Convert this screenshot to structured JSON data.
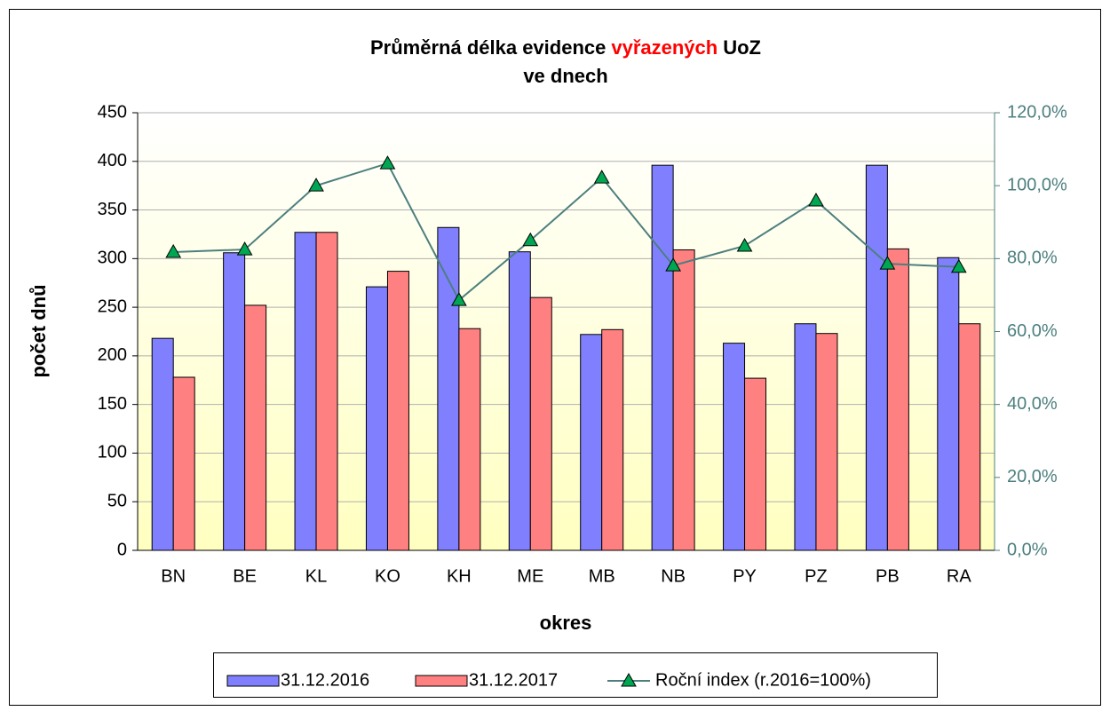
{
  "chart_data": {
    "type": "bar_line",
    "title": [
      {
        "text": "Průměrná délka evidence",
        "color": "#000000"
      },
      {
        "text": "vyřazených",
        "color": "#ff0000"
      },
      {
        "text": "UoZ",
        "color": "#000000"
      }
    ],
    "subtitle": "ve dnech",
    "x_label": "okres",
    "y_label": "počet dnů",
    "categories": [
      "BN",
      "BE",
      "KL",
      "KO",
      "KH",
      "ME",
      "MB",
      "NB",
      "PY",
      "PZ",
      "PB",
      "RA"
    ],
    "series": [
      {
        "name": "31.12.2016",
        "color": "#8080ff",
        "values": [
          218,
          306,
          327,
          271,
          332,
          307,
          222,
          396,
          213,
          233,
          396,
          301
        ]
      },
      {
        "name": "31.12.2017",
        "color": "#ff8080",
        "values": [
          178,
          252,
          327,
          287,
          228,
          260,
          227,
          309,
          177,
          223,
          310,
          233
        ]
      },
      {
        "name": "Roční index (r.2016=100%)",
        "color": "#4d7f7f",
        "marker_color": "#00a651",
        "axis": "y2",
        "values": [
          81.8,
          82.5,
          100,
          106.1,
          68.6,
          85,
          102.2,
          78.1,
          83.5,
          95.9,
          78.6,
          77.7
        ]
      }
    ],
    "ylim": [
      0,
      450
    ],
    "yticks": [
      0,
      50,
      100,
      150,
      200,
      250,
      300,
      350,
      400,
      450
    ],
    "y2lim": [
      0,
      120
    ],
    "y2ticks": [
      {
        "value": 0,
        "label": "0,0%"
      },
      {
        "value": 20,
        "label": "20,0%"
      },
      {
        "value": 40,
        "label": "40,0%"
      },
      {
        "value": 60,
        "label": "60,0%"
      },
      {
        "value": 80,
        "label": "80,0%"
      },
      {
        "value": 100,
        "label": "100,0%"
      },
      {
        "value": 120,
        "label": "120,0%"
      }
    ],
    "grid": true,
    "legend": "bottom"
  }
}
